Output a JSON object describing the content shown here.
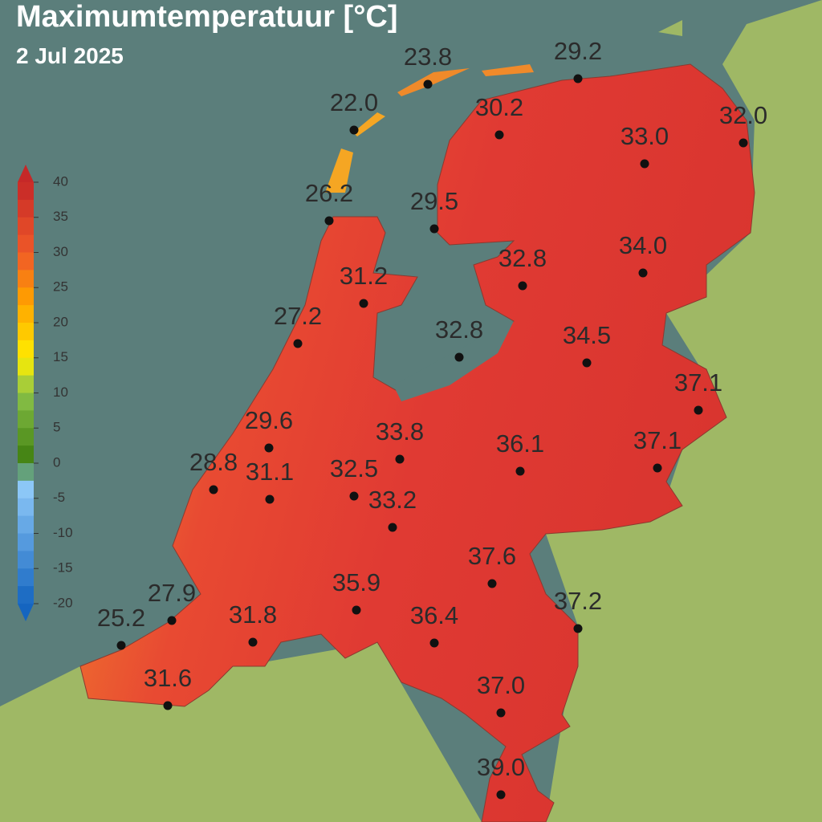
{
  "header": {
    "title": "Maximumtemperatuur [°C]",
    "date": "2 Jul 2025"
  },
  "colorbar": {
    "range": [
      -20,
      40
    ],
    "ticks": [
      40,
      35,
      30,
      25,
      20,
      15,
      10,
      5,
      0,
      -5,
      -10,
      -15,
      -20
    ]
  },
  "stations": [
    "23.8",
    "29.2",
    "22.0",
    "30.2",
    "32.0",
    "33.0",
    "26.2",
    "29.5",
    "34.0",
    "32.8",
    "31.2",
    "27.2",
    "32.8",
    "34.5",
    "37.1",
    "29.6",
    "33.8",
    "36.1",
    "37.1",
    "28.8",
    "31.1",
    "32.5",
    "33.2",
    "37.6",
    "27.9",
    "35.9",
    "37.2",
    "25.2",
    "31.8",
    "36.4",
    "31.6",
    "37.0",
    "39.0"
  ]
}
